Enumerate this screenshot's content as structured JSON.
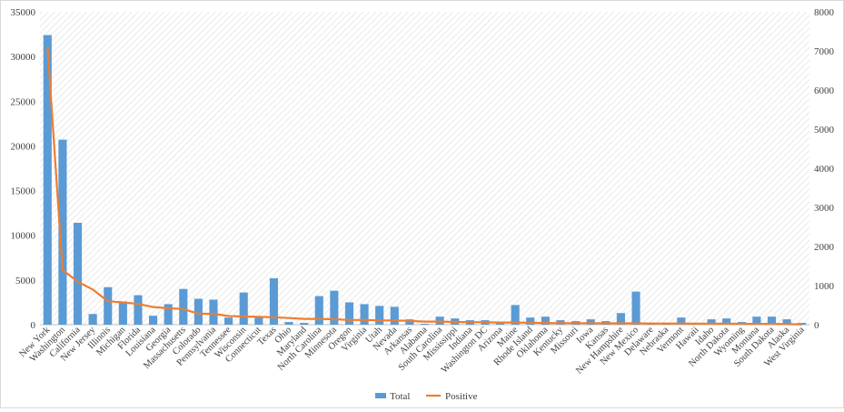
{
  "chart_data": {
    "type": "bar",
    "title": "",
    "xlabel": "",
    "ylabel": "",
    "ylim": [
      0,
      35000
    ],
    "y2lim": [
      0,
      8000
    ],
    "y_ticks": [
      "0",
      "5000",
      "10000",
      "15000",
      "20000",
      "25000",
      "30000",
      "35000"
    ],
    "y2_ticks": [
      "0",
      "1000",
      "2000",
      "3000",
      "4000",
      "5000",
      "6000",
      "7000",
      "8000"
    ],
    "grid": "diagonal hatch background",
    "legend_position": "bottom",
    "categories": [
      "New York",
      "Washington",
      "California",
      "New Jersey",
      "Illinois",
      "Michigan",
      "Florida",
      "Louisiana",
      "Georgia",
      "Massachusetts",
      "Colorado",
      "Pennsylvania",
      "Tennessee",
      "Wisconsin",
      "Connecticut",
      "Texas",
      "Ohio",
      "Maryland",
      "North Carolina",
      "Minnesota",
      "Oregon",
      "Virginia",
      "Utah",
      "Nevada",
      "Arkansas",
      "Alabama",
      "South Carolina",
      "Mississippi",
      "Indiana",
      "Washington DC",
      "Arizona",
      "Maine",
      "Rhode Island",
      "Oklahoma",
      "Kentucky",
      "Missouri",
      "Iowa",
      "Kansas",
      "New Hampshire",
      "New Mexico",
      "Delaware",
      "Nebraska",
      "Vermont",
      "Hawaii",
      "Idaho",
      "North Dakota",
      "Wyoming",
      "Montana",
      "South Dakota",
      "Alaska",
      "West Virginia"
    ],
    "series": [
      {
        "name": "Total",
        "kind": "bar",
        "axis": "left",
        "color": "#5b9bd5",
        "values": [
          32400,
          20700,
          11400,
          1200,
          4200,
          2600,
          3300,
          1000,
          2300,
          4000,
          2900,
          2800,
          800,
          3600,
          800,
          5200,
          300,
          200,
          3200,
          3800,
          2500,
          2300,
          2100,
          2000,
          600,
          100,
          900,
          700,
          500,
          500,
          300,
          2200,
          800,
          900,
          500,
          400,
          600,
          400,
          1300,
          3700,
          100,
          100,
          800,
          100,
          600,
          700,
          300,
          900,
          900,
          600,
          200
        ]
      },
      {
        "name": "Positive",
        "kind": "line",
        "axis": "right",
        "color": "#ed7d31",
        "values": [
          7100,
          1400,
          1100,
          900,
          600,
          570,
          530,
          450,
          420,
          400,
          280,
          280,
          220,
          210,
          200,
          190,
          170,
          150,
          150,
          140,
          120,
          120,
          110,
          110,
          95,
          80,
          80,
          70,
          65,
          60,
          55,
          55,
          50,
          45,
          40,
          40,
          40,
          35,
          35,
          35,
          30,
          30,
          30,
          25,
          25,
          25,
          20,
          20,
          20,
          15,
          10
        ]
      }
    ]
  }
}
